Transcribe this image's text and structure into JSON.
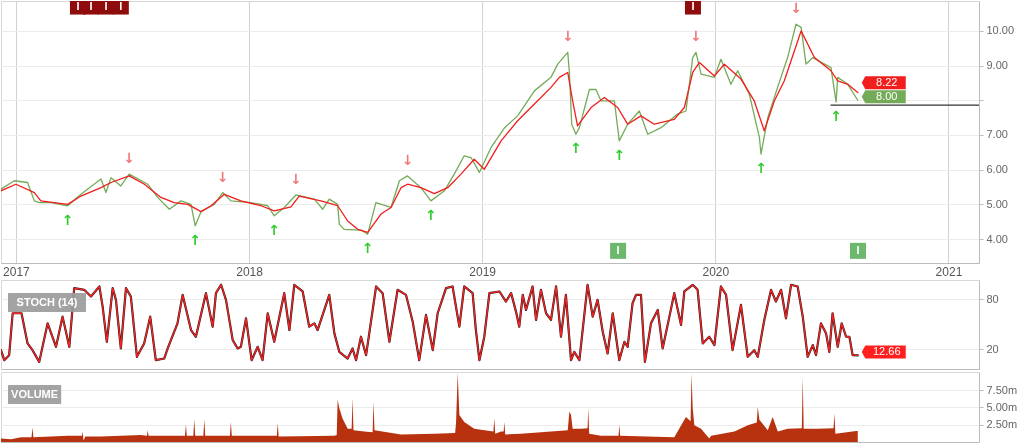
{
  "chart_data": [
    {
      "type": "line",
      "x": [
        2016.936,
        2016.993,
        2017.05,
        2017.079,
        2017.1,
        2017.15,
        2017.222,
        2017.279,
        2017.365,
        2017.386,
        2017.408,
        2017.45,
        2017.486,
        2017.565,
        2017.608,
        2017.658,
        2017.708,
        2017.751,
        2017.769,
        2017.794,
        2017.851,
        2017.887,
        2017.922,
        2018.008,
        2018.08,
        2018.108,
        2018.151,
        2018.201,
        2018.28,
        2018.316,
        2018.344,
        2018.38,
        2018.387,
        2018.408,
        2018.48,
        2018.509,
        2018.544,
        2018.609,
        2018.645,
        2018.68,
        2018.737,
        2018.78,
        2018.838,
        2018.88,
        2018.923,
        2018.952,
        2018.988,
        2019.038,
        2019.095,
        2019.152,
        2019.224,
        2019.295,
        2019.324,
        2019.367,
        2019.374,
        2019.384,
        2019.402,
        2019.417,
        2019.46,
        2019.488,
        2019.51,
        2019.567,
        2019.588,
        2019.624,
        2019.674,
        2019.71,
        2019.767,
        2019.838,
        2019.874,
        2019.903,
        2019.917,
        2019.939,
        2019.996,
        2020.024,
        2020.067,
        2020.096,
        2020.146,
        2020.189,
        2020.196,
        2020.225,
        2020.267,
        2020.31,
        2020.346,
        2020.368,
        2020.389,
        2020.418,
        2020.496,
        2020.518,
        2020.525,
        2020.568,
        2020.611
      ],
      "series": [
        {
          "color": "#74ab58",
          "values": [
            5.44,
            5.68,
            5.63,
            5.1,
            5.05,
            5.05,
            4.96,
            5.29,
            5.73,
            5.34,
            5.77,
            5.53,
            5.87,
            5.58,
            5.2,
            4.86,
            5.1,
            5.0,
            4.38,
            4.79,
            5.0,
            5.34,
            5.1,
            5.05,
            4.96,
            4.67,
            4.91,
            5.27,
            5.15,
            4.86,
            5.15,
            5.0,
            4.43,
            4.28,
            4.26,
            4.14,
            5.05,
            4.91,
            5.68,
            5.82,
            5.48,
            5.1,
            5.39,
            5.87,
            6.4,
            6.35,
            5.92,
            6.64,
            7.2,
            7.55,
            8.27,
            8.66,
            9.04,
            9.38,
            8.8,
            7.31,
            7.02,
            7.21,
            8.31,
            8.31,
            7.98,
            7.98,
            6.83,
            7.31,
            7.69,
            7.02,
            7.21,
            7.6,
            7.69,
            9.23,
            9.38,
            8.75,
            8.66,
            9.18,
            8.46,
            8.85,
            8.17,
            6.93,
            6.45,
            7.5,
            8.37,
            9.23,
            10.19,
            10.1,
            9.04,
            9.23,
            8.94,
            7.95,
            8.66,
            8.46,
            8.0
          ]
        },
        {
          "color": "#f21d1d",
          "x": [
            2016.936,
            2017.0,
            2017.079,
            2017.107,
            2017.222,
            2017.279,
            2017.365,
            2017.408,
            2017.486,
            2017.551,
            2017.622,
            2017.679,
            2017.737,
            2017.794,
            2017.837,
            2017.894,
            2017.965,
            2018.051,
            2018.108,
            2018.18,
            2018.215,
            2018.308,
            2018.38,
            2018.423,
            2018.466,
            2018.509,
            2018.566,
            2018.609,
            2018.652,
            2018.68,
            2018.737,
            2018.795,
            2018.852,
            2018.909,
            2018.966,
            2019.009,
            2019.081,
            2019.152,
            2019.224,
            2019.295,
            2019.331,
            2019.367,
            2019.388,
            2019.409,
            2019.467,
            2019.524,
            2019.581,
            2019.624,
            2019.681,
            2019.738,
            2019.824,
            2019.867,
            2019.903,
            2019.932,
            2019.996,
            2020.039,
            2020.11,
            2020.167,
            2020.21,
            2020.253,
            2020.296,
            2020.339,
            2020.368,
            2020.425,
            2020.496,
            2020.525,
            2020.568,
            2020.611
          ],
          "values": [
            5.39,
            5.58,
            5.34,
            5.1,
            5.0,
            5.24,
            5.48,
            5.63,
            5.82,
            5.58,
            5.2,
            5.05,
            5.0,
            4.79,
            4.96,
            5.29,
            5.1,
            4.96,
            4.81,
            4.93,
            5.24,
            5.1,
            4.96,
            4.52,
            4.28,
            4.19,
            4.72,
            4.91,
            5.48,
            5.58,
            5.48,
            5.31,
            5.48,
            5.87,
            6.3,
            6.01,
            6.83,
            7.41,
            7.89,
            8.37,
            8.66,
            8.8,
            7.98,
            7.26,
            7.79,
            8.08,
            7.79,
            7.31,
            7.55,
            7.31,
            7.45,
            7.79,
            8.8,
            9.09,
            8.7,
            9.04,
            8.61,
            7.98,
            7.12,
            7.98,
            8.56,
            9.42,
            10.0,
            9.23,
            8.85,
            8.56,
            8.46,
            8.22
          ]
        },
        {
          "type": "line",
          "color": "#333333",
          "x": [
            2020.496,
            2021.131
          ],
          "values": [
            7.86,
            7.86
          ]
        },
        {
          "type": "scatter",
          "marker": "square",
          "color": "#6cb86c",
          "x": [
            2019.583,
            2020.612
          ],
          "values": [
            3.66,
            3.66
          ],
          "value_labels": [
            "I",
            "I"
          ]
        },
        {
          "type": "scatter",
          "marker": "square",
          "color": "#8e0c0c",
          "x": [
            2017.266,
            2017.322,
            2017.386,
            2017.45,
            2019.904
          ],
          "values": [
            10.7,
            10.7,
            10.7,
            10.7,
            10.7
          ],
          "value_labels": [
            "I",
            "I",
            "I",
            "I",
            "I"
          ]
        }
      ],
      "xlim": [
        2016.936,
        2021.131
      ],
      "xticks": [
        2017,
        2018,
        2019,
        2020,
        2021
      ],
      "ylim": [
        3.31,
        10.86
      ],
      "yticks": [
        {
          "value": 4,
          "label": "4.00"
        },
        {
          "value": 5,
          "label": "5.00"
        },
        {
          "value": 6,
          "label": "6.00"
        },
        {
          "value": 7,
          "label": "7.00"
        },
        {
          "value": 8,
          "label": null
        },
        {
          "value": 9,
          "label": "9.00"
        },
        {
          "value": 10,
          "label": "10.00"
        }
      ],
      "grid": true,
      "annotations": [
        {
          "text": "↑",
          "x": 2017.222,
          "y": 4.96
        },
        {
          "text": "↑",
          "x": 2017.769,
          "y": 4.38
        },
        {
          "text": "↑",
          "x": 2018.108,
          "y": 4.67
        },
        {
          "text": "↑",
          "x": 2018.509,
          "y": 4.14
        },
        {
          "text": "↑",
          "x": 2018.78,
          "y": 5.1
        },
        {
          "text": "↑",
          "x": 2019.402,
          "y": 7.02
        },
        {
          "text": "↑",
          "x": 2019.588,
          "y": 6.83
        },
        {
          "text": "↑",
          "x": 2020.196,
          "y": 6.45
        },
        {
          "text": "↑",
          "x": 2020.518,
          "y": 7.95
        },
        {
          "text": "↓",
          "x": 2017.486,
          "y": 5.87
        },
        {
          "text": "↓",
          "x": 2017.887,
          "y": 5.34
        },
        {
          "text": "↓",
          "x": 2018.201,
          "y": 5.27
        },
        {
          "text": "↓",
          "x": 2018.68,
          "y": 5.82
        },
        {
          "text": "↓",
          "x": 2019.367,
          "y": 9.38
        },
        {
          "text": "↓",
          "x": 2019.917,
          "y": 9.38
        },
        {
          "text": "↓",
          "x": 2020.346,
          "y": 10.19
        },
        {
          "text": "8.00",
          "x": 2020.611,
          "y": 8.0
        },
        {
          "text": "8.22",
          "x": 2020.611,
          "y": 8.22
        }
      ]
    },
    {
      "type": "line",
      "title": "STOCH (14)",
      "x": [
        2016.936,
        2016.95,
        2016.971,
        2016.986,
        2017.007,
        2017.024,
        2017.05,
        2017.071,
        2017.1,
        2017.136,
        2017.172,
        2017.2,
        2017.229,
        2017.25,
        2017.293,
        2017.322,
        2017.358,
        2017.372,
        2017.39,
        2017.415,
        2017.429,
        2017.45,
        2017.472,
        2017.493,
        2017.519,
        2017.55,
        2017.576,
        2017.6,
        2017.636,
        2017.651,
        2017.693,
        2017.715,
        2017.751,
        2017.772,
        2017.815,
        2017.844,
        2017.858,
        2017.88,
        2017.901,
        2017.93,
        2017.951,
        2017.965,
        2017.987,
        2018.011,
        2018.037,
        2018.058,
        2018.08,
        2018.108,
        2018.151,
        2018.173,
        2018.194,
        2018.23,
        2018.258,
        2018.28,
        2018.294,
        2018.344,
        2018.366,
        2018.387,
        2018.423,
        2018.444,
        2018.459,
        2018.48,
        2018.502,
        2018.545,
        2018.573,
        2018.602,
        2018.637,
        2018.673,
        2018.702,
        2018.73,
        2018.759,
        2018.788,
        2018.809,
        2018.845,
        2018.873,
        2018.902,
        2018.923,
        2018.959,
        2018.973,
        2018.988,
        2019.009,
        2019.031,
        2019.074,
        2019.102,
        2019.124,
        2019.145,
        2019.159,
        2019.174,
        2019.188,
        2019.216,
        2019.231,
        2019.252,
        2019.274,
        2019.295,
        2019.317,
        2019.338,
        2019.359,
        2019.381,
        2019.395,
        2019.417,
        2019.452,
        2019.474,
        2019.495,
        2019.517,
        2019.538,
        2019.56,
        2019.588,
        2019.61,
        2019.624,
        2019.645,
        2019.66,
        2019.681,
        2019.698,
        2019.724,
        2019.753,
        2019.774,
        2019.803,
        2019.824,
        2019.853,
        2019.867,
        2019.903,
        2019.924,
        2019.946,
        2019.974,
        2019.996,
        2020.024,
        2020.046,
        2020.074,
        2020.11,
        2020.139,
        2020.167,
        2020.182,
        2020.21,
        2020.239,
        2020.26,
        2020.282,
        2020.303,
        2020.325,
        2020.353,
        2020.375,
        2020.396,
        2020.418,
        2020.432,
        2020.453,
        2020.475,
        2020.489,
        2020.503,
        2020.525,
        2020.542,
        2020.561,
        2020.575,
        2020.589,
        2020.611
      ],
      "series": [
        {
          "color": "#1e1e1e",
          "values": [
            19,
            7,
            13,
            63,
            null,
            63,
            27,
            19,
            5,
            51,
            23,
            59,
            23,
            93,
            91,
            83,
            95,
            71,
            29,
            93,
            79,
            21,
            93,
            83,
            11,
            27,
            59,
            7,
            9,
            21,
            51,
            85,
            43,
            35,
            87,
            47,
            87,
            97,
            79,
            31,
            21,
            23,
            57,
            7,
            23,
            7,
            63,
            29,
            87,
            43,
            97,
            89,
            47,
            51,
            43,
            85,
            39,
            17,
            9,
            21,
            7,
            35,
            13,
            95,
            87,
            29,
            91,
            85,
            53,
            7,
            61,
            19,
            63,
            93,
            95,
            47,
            95,
            87,
            43,
            7,
            35,
            87,
            89,
            77,
            87,
            65,
            47,
            85,
            67,
            95,
            55,
            91,
            63,
            55,
            95,
            35,
            85,
            7,
            17,
            7,
            97,
            59,
            79,
            41,
            15,
            63,
            7,
            29,
            23,
            75,
            85,
            85,
            5,
            51,
            67,
            21,
            59,
            87,
            49,
            89,
            97,
            91,
            27,
            35,
            25,
            95,
            85,
            19,
            73,
            11,
            19,
            11,
            55,
            91,
            77,
            91,
            57,
            97,
            95,
            59,
            11,
            25,
            13,
            51,
            39,
            17,
            63,
            23,
            51,
            35,
            35,
            13,
            12.66
          ]
        },
        {
          "color": "#ff1f1f",
          "values": [
            19,
            7,
            13,
            63,
            null,
            63,
            27,
            19,
            5,
            51,
            23,
            59,
            23,
            93,
            91,
            83,
            95,
            71,
            29,
            93,
            79,
            21,
            93,
            83,
            11,
            27,
            59,
            7,
            9,
            21,
            51,
            85,
            43,
            35,
            87,
            47,
            87,
            97,
            79,
            31,
            21,
            23,
            57,
            7,
            23,
            7,
            63,
            29,
            87,
            43,
            97,
            89,
            47,
            51,
            43,
            85,
            39,
            17,
            9,
            21,
            7,
            35,
            13,
            95,
            87,
            29,
            91,
            85,
            53,
            7,
            61,
            19,
            63,
            93,
            95,
            47,
            95,
            87,
            43,
            7,
            35,
            87,
            89,
            77,
            87,
            65,
            47,
            85,
            67,
            95,
            55,
            91,
            63,
            55,
            95,
            35,
            85,
            7,
            17,
            7,
            97,
            59,
            79,
            41,
            15,
            63,
            7,
            29,
            23,
            75,
            85,
            85,
            5,
            51,
            67,
            21,
            59,
            87,
            49,
            89,
            97,
            91,
            27,
            35,
            25,
            95,
            85,
            19,
            73,
            11,
            19,
            11,
            55,
            91,
            77,
            91,
            57,
            97,
            95,
            59,
            11,
            25,
            13,
            51,
            39,
            17,
            63,
            23,
            51,
            35,
            35,
            13,
            12.66
          ]
        }
      ],
      "xlim": [
        2016.936,
        2021.131
      ],
      "ylim": [
        -3.5,
        102.7
      ],
      "yticks": [
        20,
        80
      ],
      "grid": "y",
      "tick_labels": "y",
      "annotations": [
        {
          "text": "12.66",
          "x": 2020.611,
          "y": 12.66
        }
      ]
    },
    {
      "type": "area",
      "title": "VOLUME",
      "x": [
        2016.936,
        2016.979,
        2017.022,
        2017.067,
        2017.071,
        2017.075,
        2017.222,
        2017.283,
        2017.286,
        2017.29,
        2017.298,
        2017.365,
        2017.536,
        2017.562,
        2017.565,
        2017.569,
        2017.725,
        2017.729,
        2017.733,
        2017.761,
        2017.765,
        2017.769,
        2017.804,
        2017.808,
        2017.812,
        2017.918,
        2017.922,
        2017.926,
        2018.119,
        2018.123,
        2018.127,
        2018.366,
        2018.376,
        2018.38,
        2018.387,
        2018.401,
        2018.423,
        2018.44,
        2018.444,
        2018.448,
        2018.494,
        2018.53,
        2018.534,
        2018.538,
        2018.652,
        2018.795,
        2018.884,
        2018.888,
        2018.895,
        2018.902,
        2018.923,
        2018.966,
        2019.048,
        2019.052,
        2019.056,
        2019.081,
        2019.092,
        2019.095,
        2019.099,
        2019.166,
        2019.367,
        2019.374,
        2019.381,
        2019.388,
        2019.424,
        2019.452,
        2019.455,
        2019.459,
        2019.51,
        2019.585,
        2019.588,
        2019.592,
        2019.824,
        2019.874,
        2019.894,
        2019.898,
        2019.903,
        2019.91,
        2019.939,
        2019.974,
        2019.982,
        2020.082,
        2020.139,
        2020.178,
        2020.182,
        2020.189,
        2020.225,
        2020.246,
        2020.268,
        2020.31,
        2020.371,
        2020.375,
        2020.379,
        2020.439,
        2020.507,
        2020.511,
        2020.515,
        2020.604,
        2020.611
      ],
      "series": [
        {
          "color": "#b9320f",
          "values": [
            0.5,
            0.4,
            0.7,
            0.7,
            2.1,
            0.7,
            0.9,
            0.9,
            1.5,
            0.2,
            0.8,
            0.8,
            1.0,
            0.9,
            1.7,
            0.9,
            0.9,
            2.5,
            0.9,
            0.9,
            3.3,
            0.9,
            0.9,
            3.3,
            0.9,
            0.9,
            2.9,
            0.9,
            0.9,
            2.7,
            0.8,
            0.9,
            1.0,
            6.1,
            4.9,
            3.4,
            1.9,
            1.9,
            6.3,
            1.7,
            1.5,
            1.4,
            5.8,
            1.7,
            1.1,
            1.2,
            1.3,
            2.9,
            10.0,
            3.9,
            2.9,
            1.9,
            1.5,
            3.4,
            1.2,
            1.5,
            1.5,
            2.9,
            1.1,
            1.2,
            1.7,
            4.4,
            3.9,
            1.9,
            1.9,
            2.0,
            4.9,
            1.2,
            0.9,
            0.9,
            2.5,
            0.9,
            0.7,
            3.6,
            3.0,
            9.9,
            4.9,
            2.4,
            1.9,
            0.5,
            0.9,
            1.5,
            2.4,
            2.8,
            5.1,
            3.2,
            1.7,
            3.6,
            1.5,
            1.9,
            2.0,
            9.3,
            1.9,
            1.9,
            2.0,
            4.1,
            1.2,
            1.6,
            1.6
          ]
        }
      ],
      "xlim": [
        2016.936,
        2021.131
      ],
      "ylim": [
        0,
        10.1
      ],
      "yticks": [
        {
          "value": 2.5,
          "label": "2.50m"
        },
        {
          "value": 5,
          "label": "5.00m"
        },
        {
          "value": 7.5,
          "label": "7.50m"
        }
      ],
      "grid": "y",
      "tick_labels": "y"
    }
  ]
}
